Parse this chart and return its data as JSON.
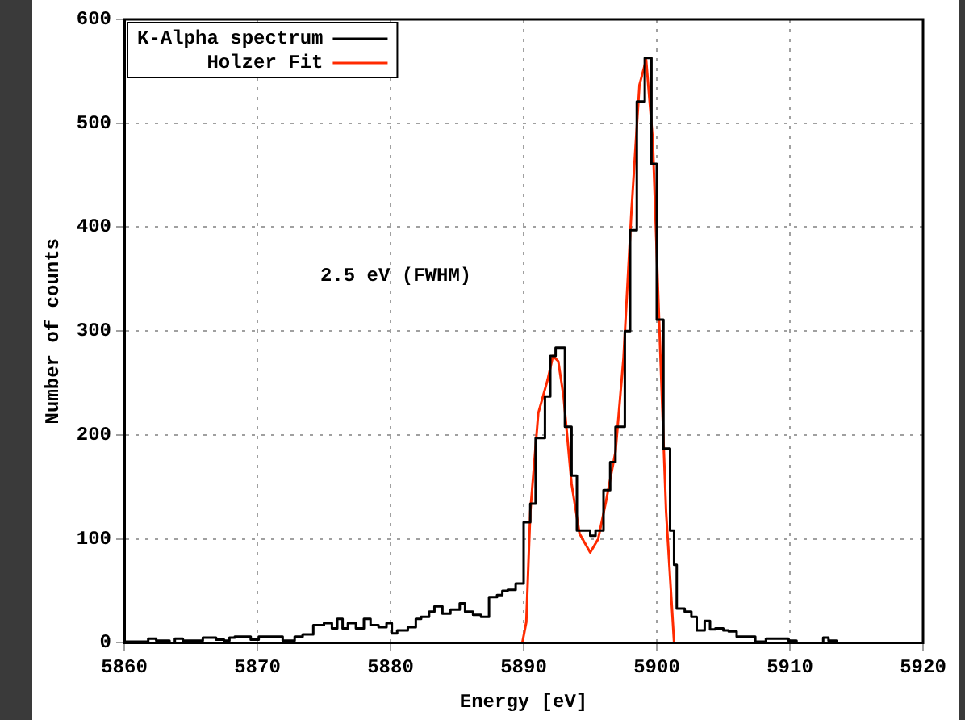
{
  "chart_data": {
    "type": "step",
    "xlabel": "Energy [eV]",
    "ylabel": "Number of counts",
    "annotations": [
      "2.5 eV (FWHM)"
    ],
    "xlim": [
      5860,
      5920
    ],
    "xticks": [
      5860,
      5870,
      5880,
      5890,
      5900,
      5910,
      5920
    ],
    "ylim": [
      0,
      600
    ],
    "yticks": [
      0,
      100,
      200,
      300,
      400,
      500,
      600
    ],
    "grid": true,
    "legend": "top left",
    "marker": "none",
    "line_style": "solid",
    "series": [
      {
        "name": "K-Alpha spectrum",
        "color": "#000000",
        "x": [
          5860,
          5861.8,
          5862.4,
          5863.4,
          5863.8,
          5864.4,
          5865.9,
          5866.9,
          5867.5,
          5867.9,
          5868.3,
          5869.5,
          5870.1,
          5871.9,
          5872.8,
          5873.4,
          5874.2,
          5875.0,
          5875.6,
          5876.0,
          5876.4,
          5876.8,
          5877.4,
          5878.0,
          5878.5,
          5879.1,
          5879.7,
          5880.1,
          5880.5,
          5881.3,
          5881.9,
          5882.3,
          5882.9,
          5883.3,
          5883.9,
          5884.5,
          5885.2,
          5885.6,
          5886.2,
          5886.8,
          5887.4,
          5888.0,
          5888.4,
          5888.8,
          5889.4,
          5890.0,
          5890.5,
          5890.9,
          5891.6,
          5892.0,
          5892.4,
          5893.1,
          5893.6,
          5894.0,
          5895.0,
          5895.4,
          5896.0,
          5896.5,
          5896.9,
          5897.6,
          5898.0,
          5898.5,
          5899.1,
          5899.6,
          5900.0,
          5900.5,
          5901.0,
          5901.3,
          5901.5,
          5902.1,
          5902.6,
          5903.0,
          5903.6,
          5904.0,
          5904.4,
          5905.0,
          5905.4,
          5906.0,
          5907.4,
          5908.2,
          5909.9,
          5910.5,
          5912.5,
          5912.9,
          5913.5,
          5920
        ],
        "values": [
          1,
          4,
          2,
          0,
          4,
          2,
          5,
          3,
          2,
          5,
          6,
          3,
          6,
          2,
          6,
          8,
          17,
          19,
          14,
          23,
          14,
          19,
          14,
          23,
          17,
          15,
          19,
          9,
          12,
          15,
          23,
          25,
          30,
          35,
          28,
          32,
          38,
          30,
          27,
          25,
          44,
          46,
          50,
          51,
          57,
          116,
          134,
          197,
          237,
          276,
          284,
          208,
          161,
          108,
          103,
          108,
          147,
          174,
          208,
          300,
          397,
          521,
          563,
          461,
          311,
          187,
          108,
          75,
          33,
          30,
          25,
          12,
          21,
          13,
          14,
          12,
          11,
          6,
          1,
          4,
          2,
          0,
          5,
          2,
          0,
          0
        ]
      },
      {
        "name": "Holzer Fit",
        "type": "line",
        "color": "#ff2a00",
        "x": [
          5889.9,
          5890.2,
          5890.5,
          5891.1,
          5891.8,
          5892.2,
          5892.6,
          5893.0,
          5893.6,
          5894.2,
          5895.0,
          5895.6,
          5896.2,
          5896.9,
          5897.5,
          5898.1,
          5898.7,
          5899.2,
          5899.7,
          5900.1,
          5900.7,
          5901.3
        ],
        "values": [
          0,
          20,
          126,
          221,
          253,
          276,
          271,
          237,
          153,
          105,
          87,
          100,
          137,
          184,
          274,
          416,
          537,
          561,
          484,
          337,
          126,
          0
        ]
      }
    ]
  }
}
